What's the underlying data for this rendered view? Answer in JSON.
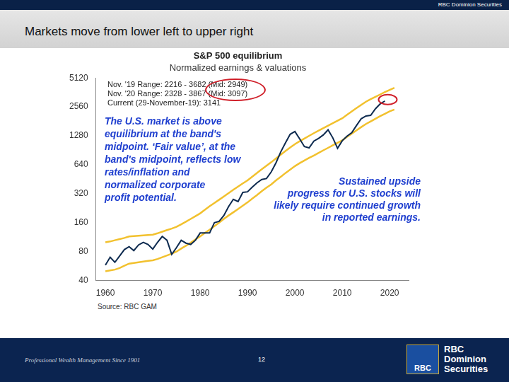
{
  "header": {
    "brand": "RBC Dominion Securities"
  },
  "title": "Markets move from lower left to upper right",
  "chart_data": {
    "type": "line",
    "title": "S&P 500 equilibrium",
    "subtitle": "Normalized earnings & valuations",
    "range_lines": [
      "Nov. '19 Range: 2216 - 3682 (Mid: 2949)",
      "Nov. '20 Range: 2328 - 3867 (Mid: 3097)",
      "Current (29-November-19): 3141"
    ],
    "annotations": [
      [
        "The U.S. market is above",
        "equilibrium at the band's",
        "midpoint. ‘Fair value’, at the",
        "band's midpoint, reflects low",
        "rates/inflation and",
        "normalized corporate",
        "profit potential."
      ],
      [
        "Sustained upside",
        "progress for U.S. stocks will",
        "likely require continued growth",
        "in reported earnings."
      ]
    ],
    "source": "Source: RBC GAM",
    "x": [
      1960,
      1961,
      1962,
      1963,
      1964,
      1965,
      1966,
      1967,
      1968,
      1969,
      1970,
      1971,
      1972,
      1973,
      1974,
      1975,
      1976,
      1977,
      1978,
      1979,
      1980,
      1981,
      1982,
      1983,
      1984,
      1985,
      1986,
      1987,
      1988,
      1989,
      1990,
      1991,
      1992,
      1993,
      1994,
      1995,
      1996,
      1997,
      1998,
      1999,
      2000,
      2001,
      2002,
      2003,
      2004,
      2005,
      2006,
      2007,
      2008,
      2009,
      2010,
      2011,
      2012,
      2013,
      2014,
      2015,
      2016,
      2017,
      2018,
      2019,
      2020,
      2021
    ],
    "series": [
      {
        "color": "#0d2a4f",
        "values": [
          58,
          70,
          62,
          72,
          84,
          90,
          82,
          94,
          100,
          95,
          85,
          100,
          115,
          105,
          75,
          88,
          105,
          98,
          95,
          105,
          125,
          125,
          125,
          160,
          165,
          190,
          235,
          280,
          265,
          330,
          335,
          375,
          415,
          450,
          460,
          540,
          670,
          870,
          1080,
          1330,
          1420,
          1190,
          990,
          960,
          1130,
          1205,
          1310,
          1480,
          1220,
          950,
          1140,
          1270,
          1380,
          1640,
          1930,
          2060,
          2090,
          2450,
          2750,
          2950,
          null,
          null
        ]
      },
      {
        "color": "#f2c12e",
        "values": [
          100,
          102,
          105,
          108,
          111,
          115,
          116,
          117,
          118,
          119,
          120,
          124,
          129,
          134,
          139,
          145,
          154,
          164,
          175,
          187,
          200,
          218,
          237,
          256,
          277,
          300,
          325,
          352,
          380,
          410,
          440,
          482,
          526,
          575,
          626,
          680,
          745,
          815,
          890,
          970,
          1050,
          1125,
          1200,
          1280,
          1365,
          1450,
          1540,
          1635,
          1735,
          1840,
          1950,
          2120,
          2300,
          2490,
          2690,
          2900,
          3080,
          3260,
          3450,
          3650,
          3850,
          4050
        ]
      },
      {
        "color": "#f2c12e",
        "values": [
          50,
          51,
          52,
          54,
          57,
          60,
          61,
          62,
          63,
          64,
          65,
          67,
          70,
          73,
          76,
          80,
          86,
          92,
          99,
          107,
          115,
          125,
          135,
          147,
          160,
          175,
          190,
          205,
          222,
          240,
          260,
          285,
          310,
          340,
          370,
          400,
          440,
          480,
          525,
          570,
          620,
          665,
          710,
          755,
          800,
          850,
          905,
          960,
          1020,
          1085,
          1150,
          1250,
          1350,
          1460,
          1580,
          1700,
          1810,
          1930,
          2050,
          2170,
          2300,
          2400
        ]
      }
    ],
    "xlim": [
      1958,
      2024
    ],
    "xticks": [
      1960,
      1970,
      1980,
      1990,
      2000,
      2010,
      2020
    ],
    "ylim": [
      40,
      5120
    ],
    "yticks": [
      40,
      80,
      160,
      320,
      640,
      1280,
      2560,
      5120
    ],
    "log": "y",
    "grid": false
  },
  "footer": {
    "tagline": "Professional Wealth Management Since 1901",
    "page": 12,
    "logo_mark": "RBC",
    "logo_text": [
      "RBC",
      "Dominion",
      "Securities"
    ]
  }
}
